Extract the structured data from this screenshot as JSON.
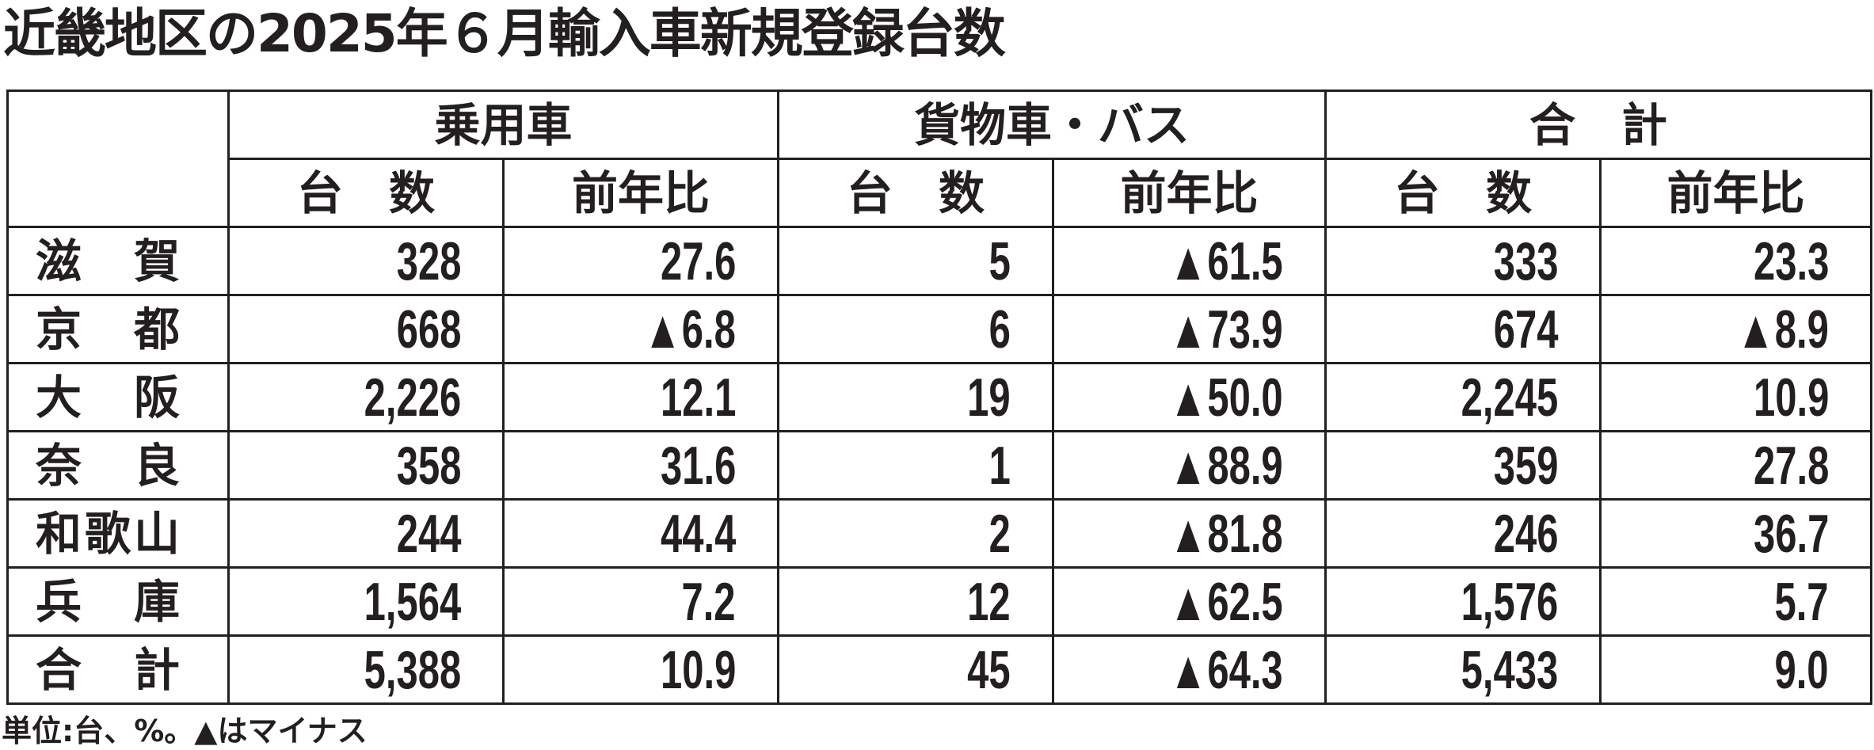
{
  "title": "近畿地区の2025年６月輸入車新規登録台数",
  "header": {
    "groups": [
      "乗用車",
      "貨物車・バス",
      "合　計"
    ],
    "sub": [
      "台　数",
      "前年比",
      "台　数",
      "前年比",
      "台　数",
      "前年比"
    ]
  },
  "rows": [
    {
      "label": "滋　賀",
      "values": [
        "328",
        "27.6",
        "5",
        "▲61.5",
        "333",
        "23.3"
      ]
    },
    {
      "label": "京　都",
      "values": [
        "668",
        "▲6.8",
        "6",
        "▲73.9",
        "674",
        "▲8.9"
      ]
    },
    {
      "label": "大　阪",
      "values": [
        "2,226",
        "12.1",
        "19",
        "▲50.0",
        "2,245",
        "10.9"
      ]
    },
    {
      "label": "奈　良",
      "values": [
        "358",
        "31.6",
        "1",
        "▲88.9",
        "359",
        "27.8"
      ]
    },
    {
      "label": "和歌山",
      "values": [
        "244",
        "44.4",
        "2",
        "▲81.8",
        "246",
        "36.7"
      ]
    },
    {
      "label": "兵　庫",
      "values": [
        "1,564",
        "7.2",
        "12",
        "▲62.5",
        "1,576",
        "5.7"
      ]
    },
    {
      "label": "合　計",
      "values": [
        "5,388",
        "10.9",
        "45",
        "▲64.3",
        "5,433",
        "9.0"
      ]
    }
  ],
  "footnote": "単位:台、%。▲はマイナス"
}
